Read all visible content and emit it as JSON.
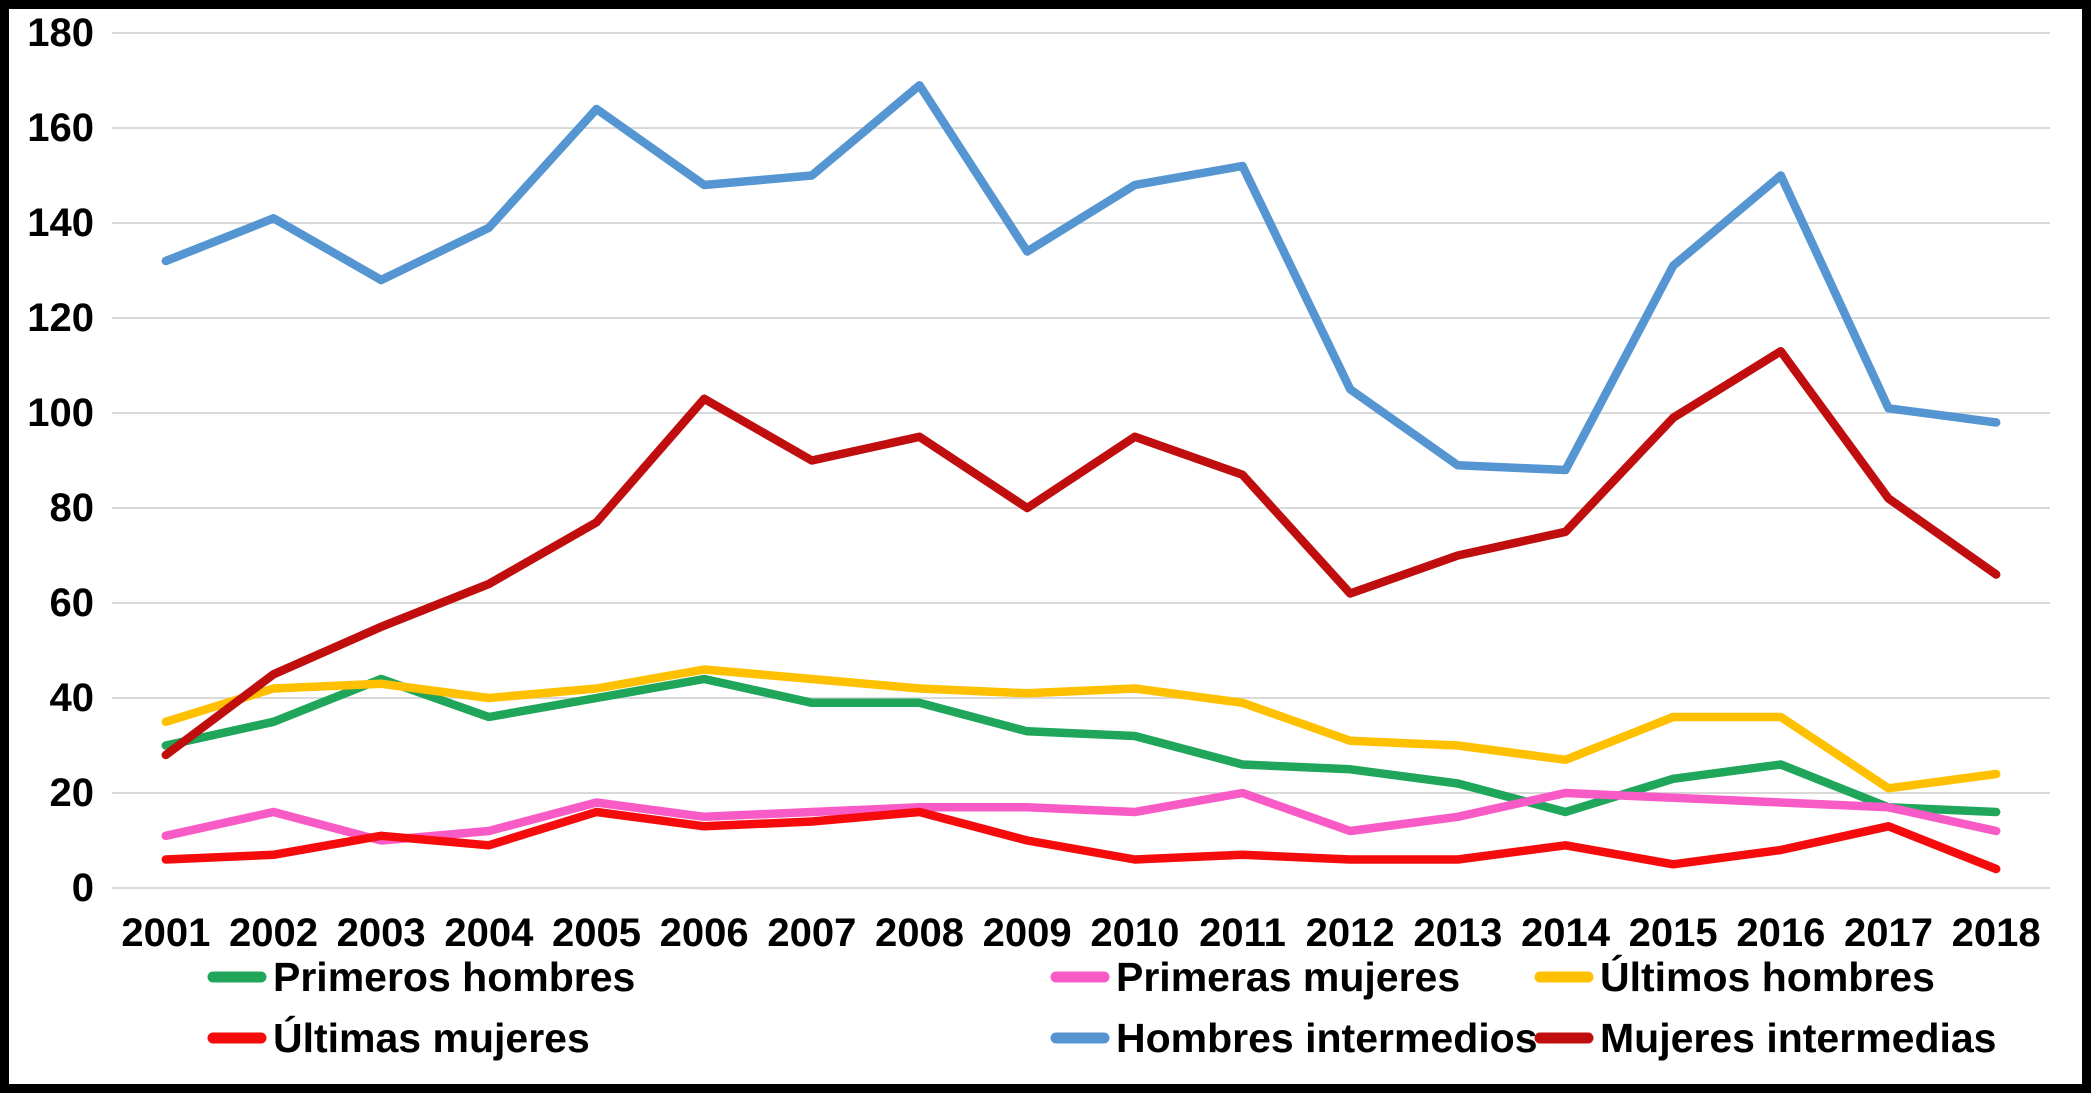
{
  "chart_data": {
    "type": "line",
    "title": "",
    "xlabel": "",
    "ylabel": "",
    "x": [
      "2001",
      "2002",
      "2003",
      "2004",
      "2005",
      "2006",
      "2007",
      "2008",
      "2009",
      "2010",
      "2011",
      "2012",
      "2013",
      "2014",
      "2015",
      "2016",
      "2017",
      "2018"
    ],
    "ylim": [
      0,
      180
    ],
    "ytick_step": 20,
    "yticks": [
      0,
      20,
      40,
      60,
      80,
      100,
      120,
      140,
      160,
      180
    ],
    "grid": "horizontal",
    "legend_position": "bottom",
    "legend_rows": 2,
    "legend_columns": 3,
    "series": [
      {
        "name": "Primeros hombres",
        "color": "#1FA65A",
        "values": [
          30,
          35,
          44,
          36,
          40,
          44,
          39,
          39,
          33,
          32,
          26,
          25,
          22,
          16,
          23,
          26,
          17,
          16
        ]
      },
      {
        "name": "Primeras mujeres",
        "color": "#F85BC5",
        "values": [
          11,
          16,
          10,
          12,
          18,
          15,
          16,
          17,
          17,
          16,
          20,
          12,
          15,
          20,
          19,
          18,
          17,
          12
        ]
      },
      {
        "name": "Últimos hombres",
        "color": "#FFC000",
        "values": [
          35,
          42,
          43,
          40,
          42,
          46,
          44,
          42,
          41,
          42,
          39,
          31,
          30,
          27,
          36,
          36,
          21,
          24
        ]
      },
      {
        "name": "Últimas mujeres",
        "color": "#F50B0B",
        "values": [
          6,
          7,
          11,
          9,
          16,
          13,
          14,
          16,
          10,
          6,
          7,
          6,
          6,
          9,
          5,
          8,
          13,
          4
        ]
      },
      {
        "name": "Hombres intermedios",
        "color": "#5596D2",
        "values": [
          132,
          141,
          128,
          139,
          164,
          148,
          150,
          169,
          134,
          148,
          152,
          105,
          89,
          88,
          131,
          150,
          101,
          98
        ]
      },
      {
        "name": "Mujeres intermedias",
        "color": "#C00D0D",
        "values": [
          28,
          45,
          55,
          64,
          77,
          103,
          90,
          95,
          80,
          95,
          87,
          62,
          70,
          75,
          99,
          113,
          82,
          66
        ]
      }
    ]
  },
  "frame": {
    "background_color": "#FFFFFF",
    "border_color": "#000000",
    "gridline_color": "#D9D9D9",
    "axis_text_color": "#000000"
  }
}
